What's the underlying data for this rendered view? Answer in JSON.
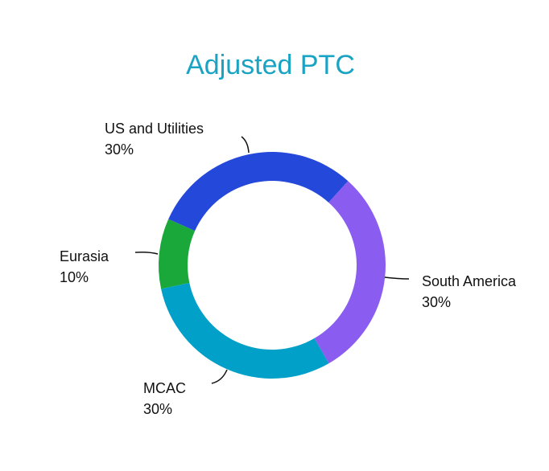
{
  "chart_data": {
    "type": "donut",
    "title": "Adjusted PTC",
    "categories": [
      "US and Utilities",
      "South America",
      "MCAC",
      "Eurasia"
    ],
    "values": [
      30,
      30,
      30,
      10
    ],
    "value_labels": [
      "30%",
      "30%",
      "30%",
      "10%"
    ],
    "colors": [
      "#2448da",
      "#8b5cf0",
      "#00a0c8",
      "#1ba83b"
    ]
  }
}
